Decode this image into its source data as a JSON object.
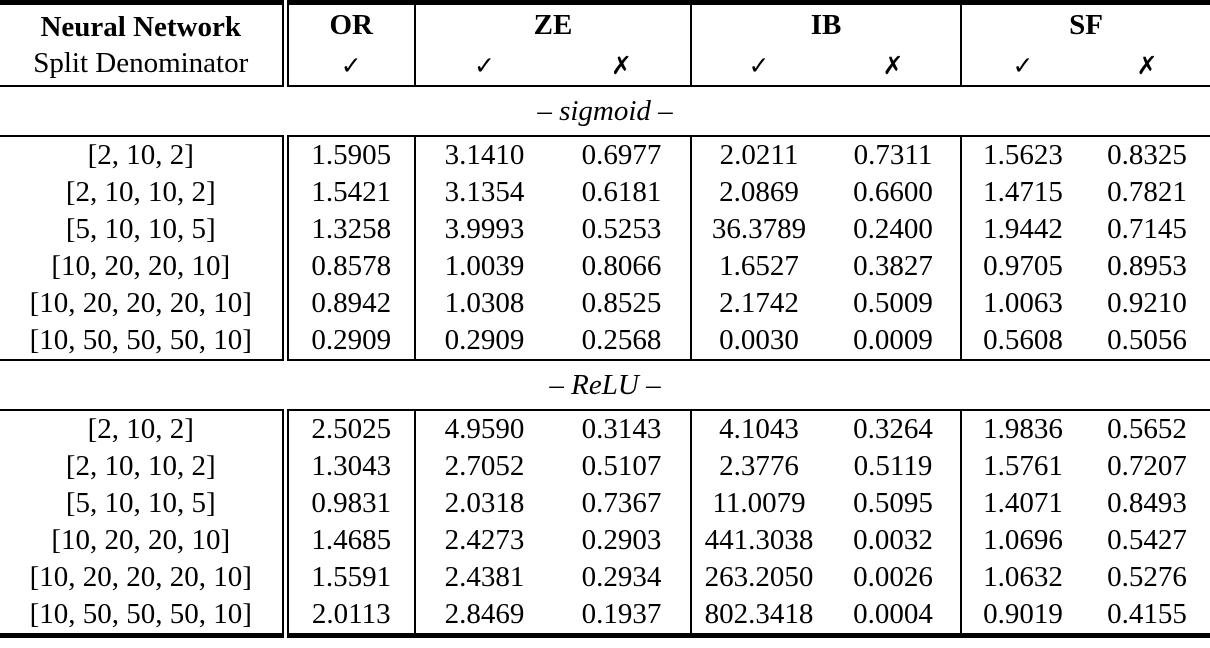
{
  "table": {
    "header": {
      "col1": {
        "line1": "Neural Network",
        "line2": "Split Denominator"
      },
      "groups": [
        {
          "label": "OR",
          "ticks": [
            "✓"
          ]
        },
        {
          "label": "ZE",
          "ticks": [
            "✓",
            "✗"
          ]
        },
        {
          "label": "IB",
          "ticks": [
            "✓",
            "✗"
          ]
        },
        {
          "label": "SF",
          "ticks": [
            "✓",
            "✗"
          ]
        }
      ]
    },
    "sections": [
      {
        "label": "– sigmoid –",
        "rows": [
          {
            "network": "[2, 10, 2]",
            "values": [
              "1.5905",
              "3.1410",
              "0.6977",
              "2.0211",
              "0.7311",
              "1.5623",
              "0.8325"
            ]
          },
          {
            "network": "[2, 10, 10, 2]",
            "values": [
              "1.5421",
              "3.1354",
              "0.6181",
              "2.0869",
              "0.6600",
              "1.4715",
              "0.7821"
            ]
          },
          {
            "network": "[5, 10, 10, 5]",
            "values": [
              "1.3258",
              "3.9993",
              "0.5253",
              "36.3789",
              "0.2400",
              "1.9442",
              "0.7145"
            ]
          },
          {
            "network": "[10, 20, 20, 10]",
            "values": [
              "0.8578",
              "1.0039",
              "0.8066",
              "1.6527",
              "0.3827",
              "0.9705",
              "0.8953"
            ]
          },
          {
            "network": "[10, 20, 20, 20, 10]",
            "values": [
              "0.8942",
              "1.0308",
              "0.8525",
              "2.1742",
              "0.5009",
              "1.0063",
              "0.9210"
            ]
          },
          {
            "network": "[10, 50, 50, 50, 10]",
            "values": [
              "0.2909",
              "0.2909",
              "0.2568",
              "0.0030",
              "0.0009",
              "0.5608",
              "0.5056"
            ]
          }
        ]
      },
      {
        "label": "– ReLU –",
        "rows": [
          {
            "network": "[2, 10, 2]",
            "values": [
              "2.5025",
              "4.9590",
              "0.3143",
              "4.1043",
              "0.3264",
              "1.9836",
              "0.5652"
            ]
          },
          {
            "network": "[2, 10, 10, 2]",
            "values": [
              "1.3043",
              "2.7052",
              "0.5107",
              "2.3776",
              "0.5119",
              "1.5761",
              "0.7207"
            ]
          },
          {
            "network": "[5, 10, 10, 5]",
            "values": [
              "0.9831",
              "2.0318",
              "0.7367",
              "11.0079",
              "0.5095",
              "1.4071",
              "0.8493"
            ]
          },
          {
            "network": "[10, 20, 20, 10]",
            "values": [
              "1.4685",
              "2.4273",
              "0.2903",
              "441.3038",
              "0.0032",
              "1.0696",
              "0.5427"
            ]
          },
          {
            "network": "[10, 20, 20, 20, 10]",
            "values": [
              "1.5591",
              "2.4381",
              "0.2934",
              "263.2050",
              "0.0026",
              "1.0632",
              "0.5276"
            ]
          },
          {
            "network": "[10, 50, 50, 50, 10]",
            "values": [
              "2.0113",
              "2.8469",
              "0.1937",
              "802.3418",
              "0.0004",
              "0.9019",
              "0.4155"
            ]
          }
        ]
      }
    ]
  }
}
